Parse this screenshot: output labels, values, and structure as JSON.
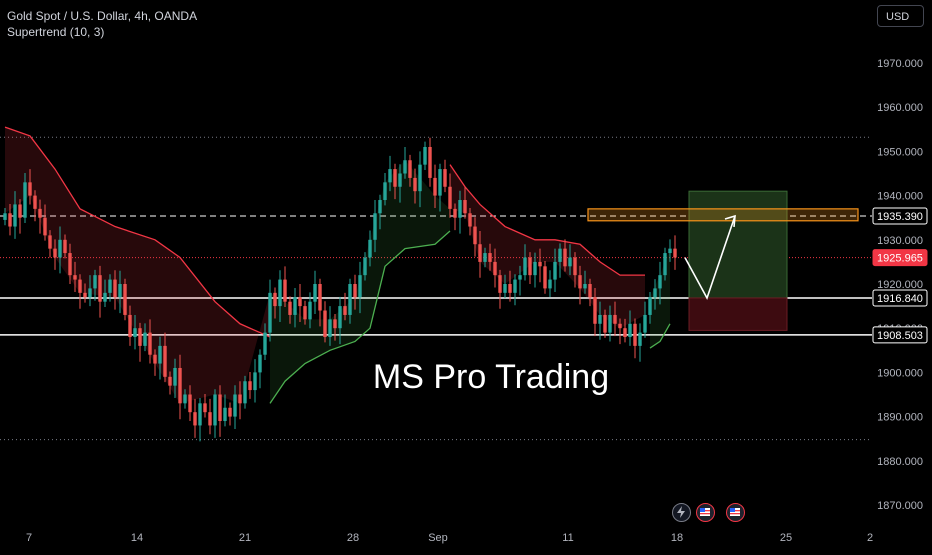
{
  "header": {
    "symbol_line": "Gold Spot / U.S. Dollar, 4h, OANDA",
    "indicator_line": "Supertrend (10, 3)"
  },
  "currency_button": "USD",
  "watermark": "MS Pro Trading",
  "icons": [
    "lightning-icon",
    "us-flag-event-icon",
    "us-flag-event-icon"
  ],
  "colors": {
    "background": "#000000",
    "up_candle": "#26a69a",
    "down_candle": "#ef5350",
    "supertrend_up": "#4caf50",
    "supertrend_down": "#f23645",
    "target_zone": "#1b3318",
    "stop_zone": "#3d0b10",
    "resistance_box": "#f7931a",
    "current_price_tag": "#f23645"
  },
  "chart_data": {
    "type": "candlestick",
    "title": "Gold Spot / U.S. Dollar, 4h, OANDA",
    "indicator": "Supertrend (10, 3)",
    "ylim": [
      1865,
      1985
    ],
    "y_ticks": [
      1870,
      1880,
      1890,
      1900,
      1910,
      1920,
      1930,
      1940,
      1950,
      1960,
      1970
    ],
    "y_tick_labels": [
      "1870.000",
      "1880.000",
      "1890.000",
      "1900.000",
      "1910.000",
      "1920.000",
      "1930.000",
      "1940.000",
      "1950.000",
      "1960.000",
      "1970.000"
    ],
    "x_tick_labels": [
      "7",
      "14",
      "21",
      "28",
      "Sep",
      "11",
      "18",
      "25",
      "2"
    ],
    "price_labels": [
      {
        "name": "dashed-resistance",
        "value": 1935.39,
        "label": "1935.390"
      },
      {
        "name": "current-price",
        "value": 1925.965,
        "label": "1925.965"
      },
      {
        "name": "support-upper",
        "value": 1916.84,
        "label": "1916.840"
      },
      {
        "name": "support-lower",
        "value": 1908.503,
        "label": "1908.503"
      }
    ],
    "dotted_levels": [
      1953.2,
      1884.8
    ],
    "resistance_zone": [
      1934.3,
      1937.0
    ],
    "target_zone": [
      1916.84,
      1941.0
    ],
    "stop_zone": [
      1909.5,
      1916.84
    ],
    "projection_path": [
      1925.965,
      1916.84,
      1935.39
    ],
    "closes": [
      1936,
      1933,
      1938,
      1935,
      1943,
      1940,
      1937,
      1935,
      1931,
      1928,
      1926,
      1930,
      1927,
      1922,
      1921,
      1918,
      1917,
      1919,
      1922,
      1916,
      1918,
      1921,
      1917,
      1920,
      1913,
      1908,
      1910,
      1906,
      1909,
      1904,
      1902,
      1906,
      1899,
      1897,
      1901,
      1893,
      1895,
      1891,
      1888,
      1893,
      1891,
      1888,
      1895,
      1889,
      1892,
      1890,
      1895,
      1893,
      1898,
      1896,
      1900,
      1904,
      1909,
      1918,
      1915,
      1921,
      1916,
      1913,
      1917,
      1915,
      1912,
      1916,
      1920,
      1914,
      1908,
      1912,
      1910,
      1915,
      1913,
      1920,
      1917,
      1922,
      1926,
      1930,
      1936,
      1939,
      1943,
      1946,
      1942,
      1945,
      1948,
      1944,
      1941,
      1947,
      1951,
      1944,
      1940,
      1946,
      1942,
      1937,
      1935,
      1939,
      1936,
      1933,
      1929,
      1925,
      1927,
      1925,
      1922,
      1918,
      1920,
      1918,
      1921,
      1922,
      1926,
      1922,
      1925,
      1924,
      1919,
      1921,
      1925,
      1928,
      1924,
      1926,
      1922,
      1919,
      1920,
      1917,
      1911,
      1913,
      1909,
      1913,
      1911,
      1910,
      1908,
      1911,
      1906,
      1909,
      1913,
      1917,
      1919,
      1922,
      1927,
      1928,
      1926
    ],
    "supertrend": [
      {
        "trend": "down",
        "points": [
          [
            0,
            1955.5
          ],
          [
            5,
            1953.5
          ],
          [
            10,
            1946
          ],
          [
            15,
            1937
          ],
          [
            22,
            1933
          ],
          [
            30,
            1930
          ],
          [
            35,
            1926
          ],
          [
            42,
            1916
          ],
          [
            47,
            1911
          ],
          [
            53,
            1908
          ]
        ]
      },
      {
        "trend": "up",
        "points": [
          [
            53,
            1893
          ],
          [
            56,
            1898
          ],
          [
            60,
            1902
          ],
          [
            65,
            1905
          ],
          [
            70,
            1907
          ],
          [
            73,
            1910
          ],
          [
            76,
            1924
          ],
          [
            80,
            1928
          ],
          [
            86,
            1929
          ],
          [
            89,
            1932
          ]
        ]
      },
      {
        "trend": "down",
        "points": [
          [
            89,
            1947
          ],
          [
            92,
            1942
          ],
          [
            95,
            1938
          ],
          [
            100,
            1933
          ],
          [
            106,
            1930
          ],
          [
            110,
            1930
          ],
          [
            115,
            1929
          ],
          [
            119,
            1925
          ],
          [
            123,
            1922
          ],
          [
            128,
            1922
          ]
        ]
      },
      {
        "trend": "up",
        "points": [
          [
            129,
            1905.5
          ],
          [
            131,
            1907
          ],
          [
            133,
            1911
          ]
        ]
      }
    ]
  }
}
